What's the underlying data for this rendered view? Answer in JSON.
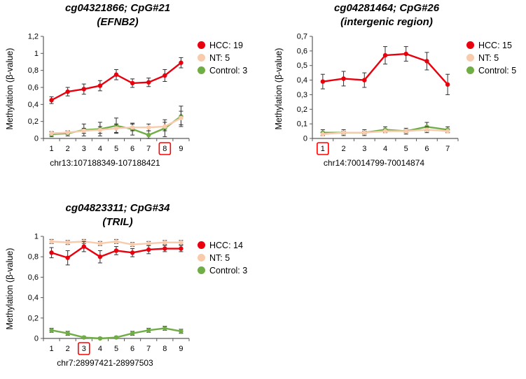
{
  "colors": {
    "hcc": "#e8000d",
    "nt": "#f8cbad",
    "control": "#70ad47",
    "highlight_box": "#ff0000",
    "error_bar": "#2f2f2f",
    "axis": "#5a5a5a"
  },
  "chart_data": [
    {
      "type": "line",
      "title1": "cg04321866; CpG#21",
      "title2": "(EFNB2)",
      "ylabel": "Methylation (β-value)",
      "xlabel": "chr13:107188349-107188421",
      "ylim": [
        0,
        1.2
      ],
      "ytick_values": [
        0,
        0.2,
        0.4,
        0.6,
        0.8,
        1.0,
        1.2
      ],
      "yticks": [
        "0",
        "0,2",
        "0,4",
        "0,6",
        "0,8",
        "1",
        "1,2"
      ],
      "x": [
        1,
        2,
        3,
        4,
        5,
        6,
        7,
        8,
        9
      ],
      "boxed_x": "8",
      "legend_position": "right",
      "grid": false,
      "series": [
        {
          "name": "HCC",
          "legend": "HCC: 19",
          "color": "#e8000d",
          "values": [
            0.45,
            0.55,
            0.58,
            0.62,
            0.75,
            0.65,
            0.66,
            0.74,
            0.89
          ],
          "err": [
            0.04,
            0.05,
            0.06,
            0.06,
            0.06,
            0.05,
            0.05,
            0.07,
            0.06
          ]
        },
        {
          "name": "NT",
          "legend": "NT: 5",
          "color": "#f8cbad",
          "values": [
            0.06,
            0.07,
            0.09,
            0.1,
            0.12,
            0.13,
            0.13,
            0.14,
            0.24
          ],
          "err": [
            0.02,
            0.02,
            0.03,
            0.04,
            0.05,
            0.04,
            0.04,
            0.05,
            0.08
          ]
        },
        {
          "name": "Control",
          "legend": "Control: 3",
          "color": "#70ad47",
          "values": [
            0.05,
            0.06,
            0.1,
            0.11,
            0.15,
            0.11,
            0.04,
            0.12,
            0.26
          ],
          "err": [
            0.03,
            0.03,
            0.07,
            0.08,
            0.09,
            0.07,
            0.05,
            0.1,
            0.12
          ]
        }
      ]
    },
    {
      "type": "line",
      "title1": "cg04281464; CpG#26",
      "title2": "(intergenic region)",
      "ylabel": "Methylation (β-value)",
      "xlabel": "chr14:70014799-70014874",
      "ylim": [
        0,
        0.7
      ],
      "ytick_values": [
        0,
        0.1,
        0.2,
        0.3,
        0.4,
        0.5,
        0.6,
        0.7
      ],
      "yticks": [
        "0",
        "0,1",
        "0,2",
        "0,3",
        "0,4",
        "0,5",
        "0,6",
        "0,7"
      ],
      "x": [
        1,
        2,
        3,
        4,
        5,
        6,
        7
      ],
      "boxed_x": "1",
      "legend_position": "right",
      "grid": false,
      "series": [
        {
          "name": "HCC",
          "legend": "HCC: 15",
          "color": "#e8000d",
          "values": [
            0.39,
            0.41,
            0.4,
            0.57,
            0.58,
            0.53,
            0.37
          ],
          "err": [
            0.05,
            0.05,
            0.05,
            0.06,
            0.05,
            0.06,
            0.07
          ]
        },
        {
          "name": "NT",
          "legend": "NT: 5",
          "color": "#f8cbad",
          "values": [
            0.03,
            0.04,
            0.04,
            0.05,
            0.05,
            0.06,
            0.05
          ],
          "err": [
            0.01,
            0.01,
            0.01,
            0.01,
            0.01,
            0.02,
            0.01
          ]
        },
        {
          "name": "Control",
          "legend": "Control: 5",
          "color": "#70ad47",
          "values": [
            0.04,
            0.04,
            0.04,
            0.06,
            0.05,
            0.08,
            0.06
          ],
          "err": [
            0.02,
            0.02,
            0.02,
            0.02,
            0.02,
            0.03,
            0.02
          ]
        }
      ]
    },
    {
      "type": "line",
      "title1": "cg04823311; CpG#34",
      "title2": "(TRIL)",
      "ylabel": "Methylation (β-value)",
      "xlabel": "chr7:28997421-28997503",
      "ylim": [
        0,
        1.0
      ],
      "ytick_values": [
        0,
        0.2,
        0.4,
        0.6,
        0.8,
        1.0
      ],
      "yticks": [
        "0",
        "0,2",
        "0,4",
        "0,6",
        "0,8",
        "1"
      ],
      "x": [
        1,
        2,
        3,
        4,
        5,
        6,
        7,
        8,
        9
      ],
      "boxed_x": "3",
      "legend_position": "right",
      "grid": false,
      "series": [
        {
          "name": "HCC",
          "legend": "HCC: 14",
          "color": "#e8000d",
          "values": [
            0.84,
            0.79,
            0.9,
            0.8,
            0.86,
            0.84,
            0.87,
            0.88,
            0.88
          ],
          "err": [
            0.05,
            0.07,
            0.05,
            0.06,
            0.04,
            0.04,
            0.04,
            0.03,
            0.03
          ]
        },
        {
          "name": "NT",
          "legend": "NT: 5",
          "color": "#f8cbad",
          "values": [
            0.95,
            0.94,
            0.95,
            0.93,
            0.95,
            0.92,
            0.93,
            0.94,
            0.94
          ],
          "err": [
            0.02,
            0.02,
            0.02,
            0.02,
            0.02,
            0.02,
            0.02,
            0.02,
            0.02
          ]
        },
        {
          "name": "Control",
          "legend": "Control: 3",
          "color": "#70ad47",
          "values": [
            0.08,
            0.05,
            0.01,
            0.0,
            0.01,
            0.05,
            0.08,
            0.1,
            0.07
          ],
          "err": [
            0.02,
            0.02,
            0.01,
            0.01,
            0.01,
            0.02,
            0.02,
            0.02,
            0.02
          ]
        }
      ]
    }
  ]
}
